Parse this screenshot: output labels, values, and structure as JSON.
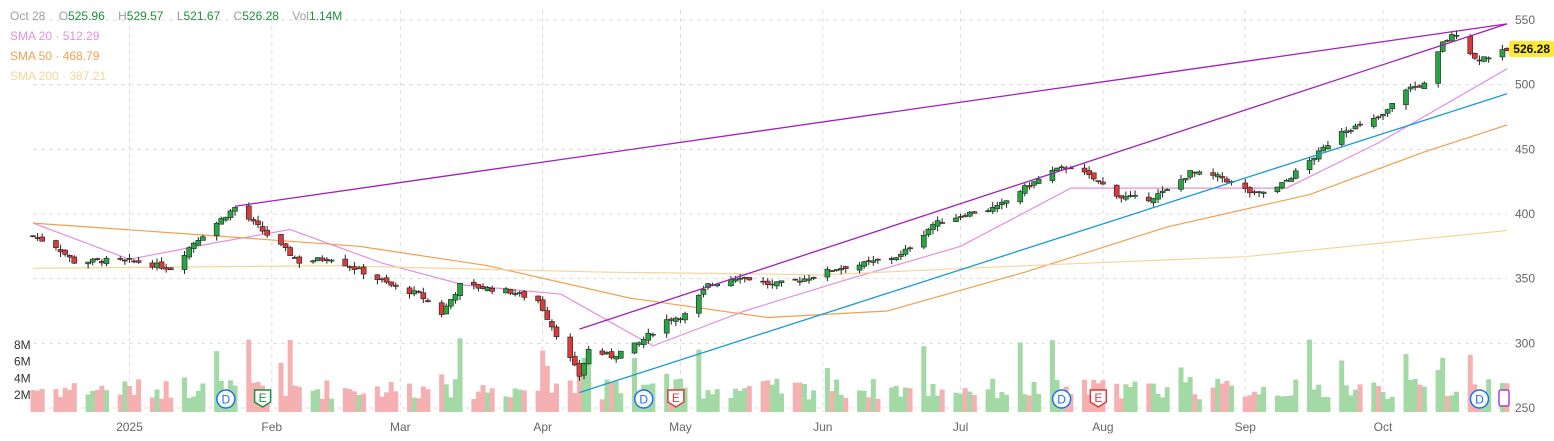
{
  "ohlc": {
    "date": "Oct 28",
    "o_label": "O",
    "o": "525.96",
    "h_label": "H",
    "h": "529.57",
    "l_label": "L",
    "l": "521.67",
    "c_label": "C",
    "c": "526.28",
    "vol_label": "Vol",
    "vol": "1.14M"
  },
  "indicators": [
    {
      "name": "SMA 20",
      "value": "512.29",
      "color": "#e58fe0"
    },
    {
      "name": "SMA 50",
      "value": "468.79",
      "color": "#f0a050"
    },
    {
      "name": "SMA 200",
      "value": "387.21",
      "color": "#f5d59a"
    }
  ],
  "last_price": "526.28",
  "colors": {
    "up": "#26a641",
    "down": "#d93b3b",
    "vol_up": "#a3d9a5",
    "vol_down": "#f5b1b1",
    "trend_purple": "#a020b8",
    "trend_blue": "#1a9ad6",
    "grid": "#dddddd",
    "axis_text": "#666666"
  },
  "chart_data": {
    "type": "candlestick",
    "x_ticks": [
      "2025",
      "Feb",
      "Mar",
      "Apr",
      "May",
      "Jun",
      "Jul",
      "Aug",
      "Sep",
      "Oct"
    ],
    "x_tick_dates": [
      "2025-01-01",
      "2025-02-01",
      "2025-03-01",
      "2025-04-01",
      "2025-05-01",
      "2025-06-01",
      "2025-07-01",
      "2025-08-01",
      "2025-09-01",
      "2025-10-01"
    ],
    "x_range": [
      "2024-12-11",
      "2025-10-28"
    ],
    "price_ticks": [
      "550",
      "500",
      "450",
      "400",
      "350",
      "300",
      "250"
    ],
    "price_range": [
      245,
      555
    ],
    "volume_ticks": [
      "8M",
      "6M",
      "4M",
      "2M"
    ],
    "grid": true,
    "closes": [
      {
        "d": "2024-12-11",
        "c": 383
      },
      {
        "d": "2024-12-16",
        "c": 375
      },
      {
        "d": "2024-12-20",
        "c": 363
      },
      {
        "d": "2024-12-27",
        "c": 364
      },
      {
        "d": "2025-01-03",
        "c": 363
      },
      {
        "d": "2025-01-10",
        "c": 358
      },
      {
        "d": "2025-01-15",
        "c": 378
      },
      {
        "d": "2025-01-21",
        "c": 396
      },
      {
        "d": "2025-01-24",
        "c": 405
      },
      {
        "d": "2025-01-29",
        "c": 390
      },
      {
        "d": "2025-02-03",
        "c": 375
      },
      {
        "d": "2025-02-07",
        "c": 363
      },
      {
        "d": "2025-02-14",
        "c": 366
      },
      {
        "d": "2025-02-21",
        "c": 355
      },
      {
        "d": "2025-02-28",
        "c": 343
      },
      {
        "d": "2025-03-05",
        "c": 338
      },
      {
        "d": "2025-03-10",
        "c": 323
      },
      {
        "d": "2025-03-14",
        "c": 345
      },
      {
        "d": "2025-03-19",
        "c": 343
      },
      {
        "d": "2025-03-25",
        "c": 340
      },
      {
        "d": "2025-03-31",
        "c": 333
      },
      {
        "d": "2025-04-04",
        "c": 307
      },
      {
        "d": "2025-04-09",
        "c": 275
      },
      {
        "d": "2025-04-11",
        "c": 295
      },
      {
        "d": "2025-04-16",
        "c": 290
      },
      {
        "d": "2025-04-22",
        "c": 300
      },
      {
        "d": "2025-04-28",
        "c": 318
      },
      {
        "d": "2025-05-02",
        "c": 322
      },
      {
        "d": "2025-05-07",
        "c": 345
      },
      {
        "d": "2025-05-14",
        "c": 352
      },
      {
        "d": "2025-05-21",
        "c": 345
      },
      {
        "d": "2025-05-28",
        "c": 350
      },
      {
        "d": "2025-06-04",
        "c": 358
      },
      {
        "d": "2025-06-11",
        "c": 362
      },
      {
        "d": "2025-06-18",
        "c": 368
      },
      {
        "d": "2025-06-25",
        "c": 392
      },
      {
        "d": "2025-07-02",
        "c": 400
      },
      {
        "d": "2025-07-09",
        "c": 405
      },
      {
        "d": "2025-07-14",
        "c": 418
      },
      {
        "d": "2025-07-21",
        "c": 433
      },
      {
        "d": "2025-07-25",
        "c": 437
      },
      {
        "d": "2025-07-31",
        "c": 425
      },
      {
        "d": "2025-08-05",
        "c": 413
      },
      {
        "d": "2025-08-11",
        "c": 412
      },
      {
        "d": "2025-08-15",
        "c": 418
      },
      {
        "d": "2025-08-20",
        "c": 432
      },
      {
        "d": "2025-08-27",
        "c": 428
      },
      {
        "d": "2025-09-03",
        "c": 415
      },
      {
        "d": "2025-09-08",
        "c": 420
      },
      {
        "d": "2025-09-12",
        "c": 432
      },
      {
        "d": "2025-09-17",
        "c": 447
      },
      {
        "d": "2025-09-22",
        "c": 465
      },
      {
        "d": "2025-09-26",
        "c": 468
      },
      {
        "d": "2025-10-01",
        "c": 476
      },
      {
        "d": "2025-10-06",
        "c": 497
      },
      {
        "d": "2025-10-10",
        "c": 500
      },
      {
        "d": "2025-10-14",
        "c": 532
      },
      {
        "d": "2025-10-17",
        "c": 540
      },
      {
        "d": "2025-10-21",
        "c": 520
      },
      {
        "d": "2025-10-24",
        "c": 522
      },
      {
        "d": "2025-10-28",
        "c": 526.28
      }
    ],
    "sma_series": [
      {
        "name": "SMA 20",
        "values": [
          {
            "d": "2024-12-11",
            "c": 393
          },
          {
            "d": "2025-01-01",
            "c": 365
          },
          {
            "d": "2025-01-20",
            "c": 378
          },
          {
            "d": "2025-02-05",
            "c": 388
          },
          {
            "d": "2025-02-25",
            "c": 362
          },
          {
            "d": "2025-03-15",
            "c": 345
          },
          {
            "d": "2025-04-05",
            "c": 338
          },
          {
            "d": "2025-04-25",
            "c": 298
          },
          {
            "d": "2025-05-15",
            "c": 325
          },
          {
            "d": "2025-06-05",
            "c": 348
          },
          {
            "d": "2025-07-01",
            "c": 375
          },
          {
            "d": "2025-07-25",
            "c": 420
          },
          {
            "d": "2025-08-15",
            "c": 420
          },
          {
            "d": "2025-09-10",
            "c": 420
          },
          {
            "d": "2025-09-30",
            "c": 455
          },
          {
            "d": "2025-10-28",
            "c": 512.29
          }
        ]
      },
      {
        "name": "SMA 50",
        "values": [
          {
            "d": "2024-12-11",
            "c": 393
          },
          {
            "d": "2025-01-20",
            "c": 383
          },
          {
            "d": "2025-02-20",
            "c": 375
          },
          {
            "d": "2025-03-20",
            "c": 360
          },
          {
            "d": "2025-04-20",
            "c": 335
          },
          {
            "d": "2025-05-20",
            "c": 320
          },
          {
            "d": "2025-06-15",
            "c": 325
          },
          {
            "d": "2025-07-15",
            "c": 355
          },
          {
            "d": "2025-08-15",
            "c": 390
          },
          {
            "d": "2025-09-15",
            "c": 415
          },
          {
            "d": "2025-10-10",
            "c": 448
          },
          {
            "d": "2025-10-28",
            "c": 468.79
          }
        ]
      },
      {
        "name": "SMA 200",
        "values": [
          {
            "d": "2024-12-11",
            "c": 358
          },
          {
            "d": "2025-02-15",
            "c": 360
          },
          {
            "d": "2025-04-15",
            "c": 355
          },
          {
            "d": "2025-06-01",
            "c": 353
          },
          {
            "d": "2025-07-15",
            "c": 360
          },
          {
            "d": "2025-09-01",
            "c": 367
          },
          {
            "d": "2025-10-28",
            "c": 387.21
          }
        ]
      }
    ],
    "trendlines": [
      {
        "color": "purple",
        "from": {
          "d": "2025-01-24",
          "c": 406
        },
        "to": {
          "d": "2025-10-28",
          "c": 547
        }
      },
      {
        "color": "purple",
        "from": {
          "d": "2025-04-09",
          "c": 311
        },
        "to": {
          "d": "2025-10-28",
          "c": 547
        }
      },
      {
        "color": "blue",
        "from": {
          "d": "2025-04-09",
          "c": 262
        },
        "to": {
          "d": "2025-10-28",
          "c": 493
        }
      }
    ],
    "events": [
      {
        "d": "2025-01-22",
        "label": "D"
      },
      {
        "d": "2025-01-30",
        "label": "E"
      },
      {
        "d": "2025-04-23",
        "label": "D"
      },
      {
        "d": "2025-04-30",
        "label": "E"
      },
      {
        "d": "2025-07-23",
        "label": "D"
      },
      {
        "d": "2025-07-31",
        "label": "E"
      },
      {
        "d": "2025-10-22",
        "label": "D"
      }
    ]
  }
}
